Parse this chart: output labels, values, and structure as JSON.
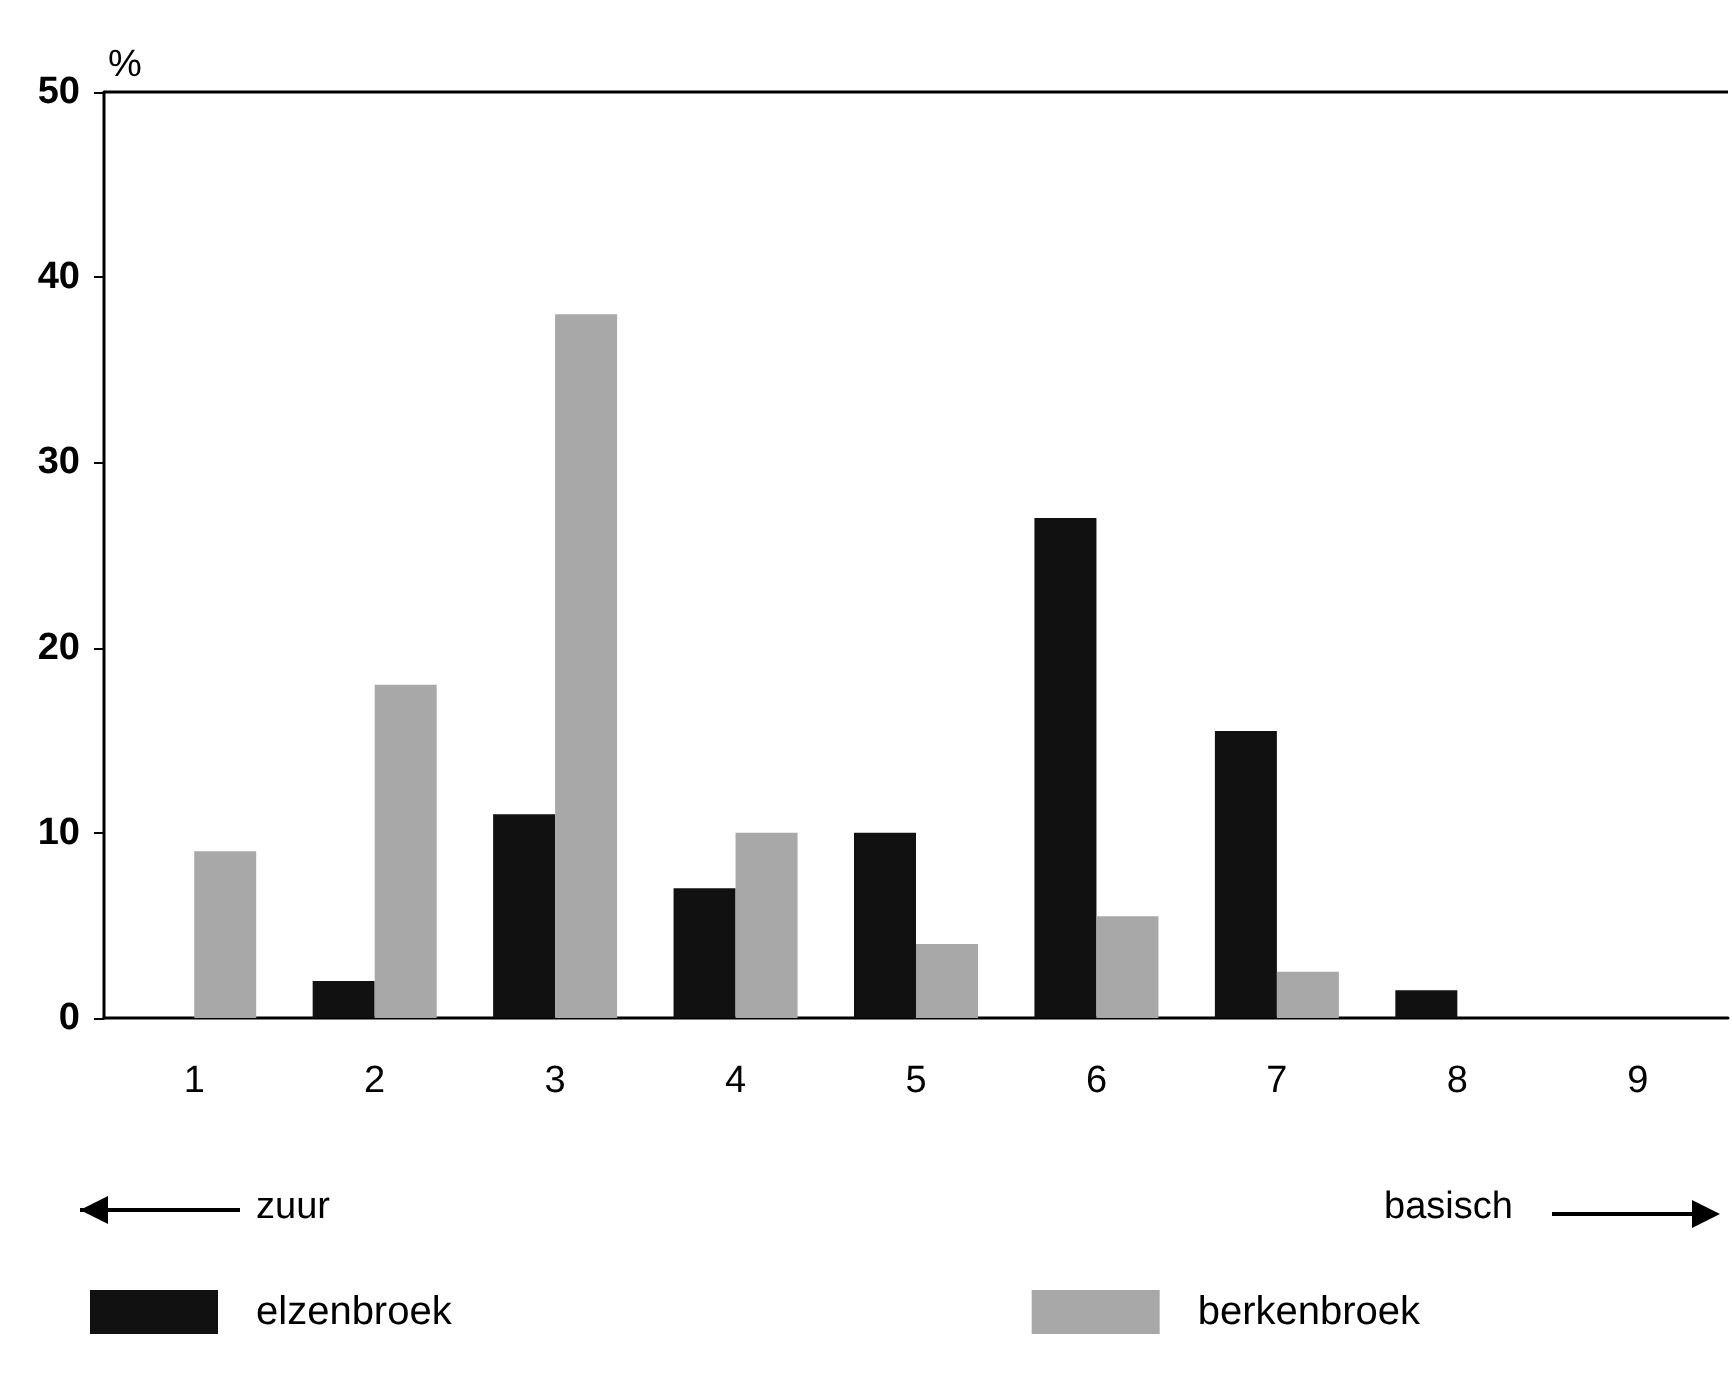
{
  "chart_data": {
    "type": "bar",
    "ylabel": "%",
    "categories": [
      "1",
      "2",
      "3",
      "4",
      "5",
      "6",
      "7",
      "8",
      "9"
    ],
    "series": [
      {
        "name": "elzenbroek",
        "color": "#111111",
        "values": [
          0,
          2,
          11,
          7,
          10,
          27,
          15.5,
          1.5,
          null
        ]
      },
      {
        "name": "berkenbroek",
        "color": "#a8a8a8",
        "values": [
          9,
          18,
          38,
          10,
          4,
          5.5,
          2.5,
          0,
          null
        ]
      }
    ],
    "ylim": [
      0,
      50
    ],
    "yticks": [
      0,
      10,
      20,
      30,
      40,
      50
    ],
    "annotations": [
      "zuur",
      "basisch"
    ],
    "grid": false,
    "legend": "bottom left"
  }
}
